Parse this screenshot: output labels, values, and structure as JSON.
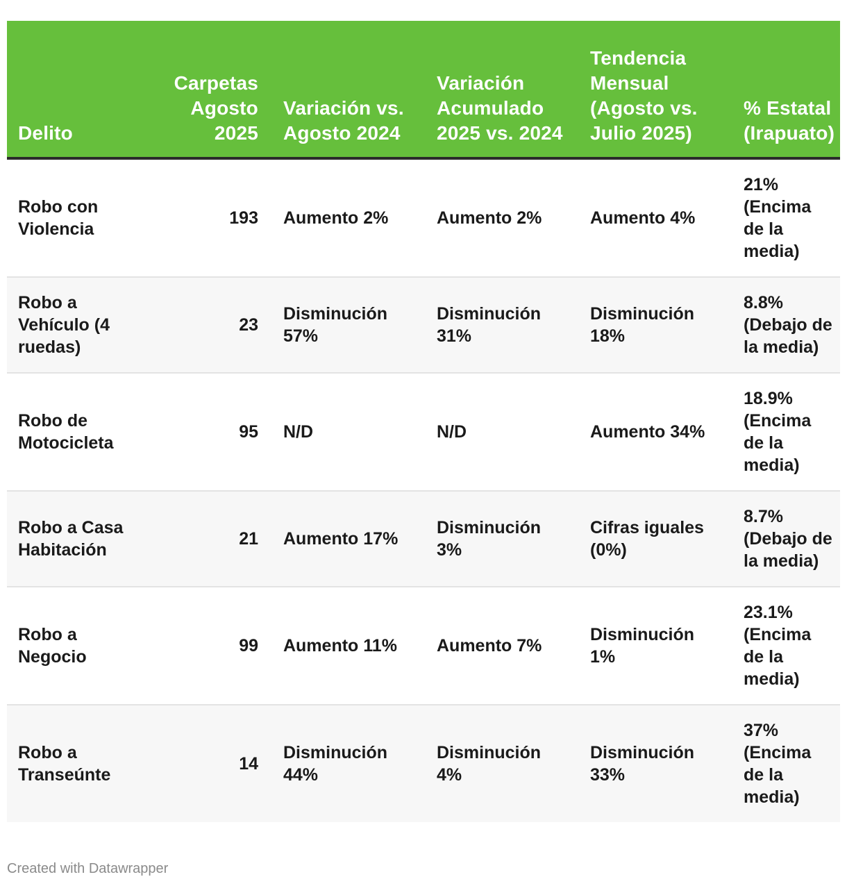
{
  "chart_data": {
    "type": "table",
    "columns": [
      "Delito",
      "Carpetas Agosto 2025",
      "Variación vs. Agosto 2024",
      "Variación Acumulado 2025 vs. 2024",
      "Tendencia Mensual (Agosto vs. Julio 2025)",
      "% Estatal (Irapuato)"
    ],
    "rows": [
      {
        "delito": "Robo con Violencia",
        "carpetas": "193",
        "var_agosto": "Aumento 2%",
        "var_acumulado": "Aumento 2%",
        "tendencia": "Aumento 4%",
        "pct_lines": [
          "21%",
          "(Encima",
          "de la",
          "media)"
        ]
      },
      {
        "delito": "Robo a Vehículo (4 ruedas)",
        "carpetas": "23",
        "var_agosto": "Disminución 57%",
        "var_acumulado": "Disminución 31%",
        "tendencia": "Disminución 18%",
        "pct_lines": [
          "8.8%",
          "(Debajo de",
          "la media)"
        ]
      },
      {
        "delito": "Robo de Motocicleta",
        "carpetas": "95",
        "var_agosto": "N/D",
        "var_acumulado": "N/D",
        "tendencia": "Aumento 34%",
        "pct_lines": [
          "18.9%",
          "(Encima",
          "de la",
          "media)"
        ]
      },
      {
        "delito": "Robo a Casa Habitación",
        "carpetas": "21",
        "var_agosto": "Aumento 17%",
        "var_acumulado": "Disminución 3%",
        "tendencia": "Cifras iguales (0%)",
        "pct_lines": [
          "8.7%",
          "(Debajo de",
          "la media)"
        ]
      },
      {
        "delito": "Robo a Negocio",
        "carpetas": "99",
        "var_agosto": "Aumento 11%",
        "var_acumulado": "Aumento 7%",
        "tendencia": "Disminución 1%",
        "pct_lines": [
          "23.1%",
          "(Encima",
          "de la",
          "media)"
        ]
      },
      {
        "delito": "Robo a Transeúnte",
        "carpetas": "14",
        "var_agosto": "Disminución 44%",
        "var_acumulado": "Disminución 4%",
        "tendencia": "Disminución 33%",
        "pct_lines": [
          "37%",
          "(Encima",
          "de la",
          "media)"
        ]
      }
    ]
  },
  "footer": {
    "credit": "Created with Datawrapper"
  },
  "colors": {
    "header_bg": "#66bf3c",
    "header_text": "#ffffff",
    "header_rule": "#2b2b2b",
    "row_alt": "#f7f7f7"
  }
}
